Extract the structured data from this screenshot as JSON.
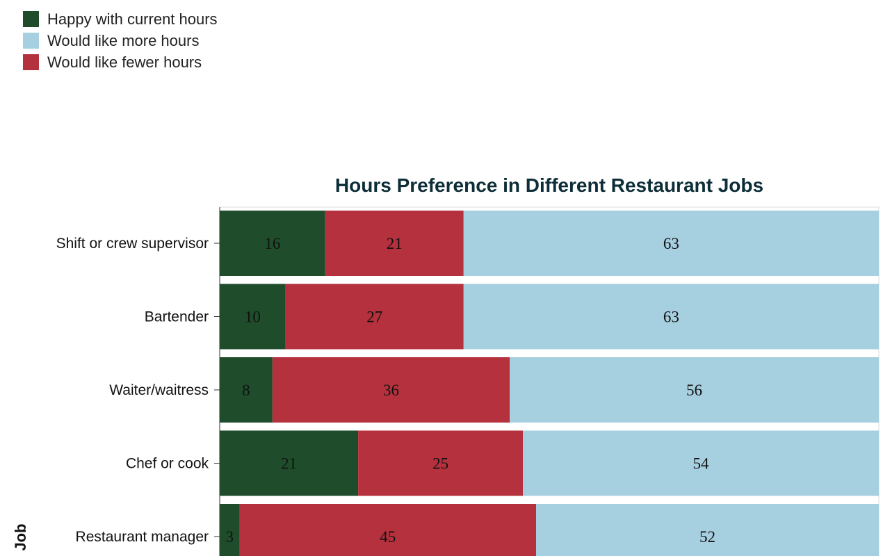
{
  "chart_data": {
    "type": "bar",
    "orientation": "horizontal",
    "stacked": "normalized",
    "title": "Hours Preference in Different Restaurant Jobs",
    "ylabel": "Job",
    "xlabel": "",
    "categories": [
      "Shift or crew supervisor",
      "Bartender",
      "Waiter/waitress",
      "Chef or cook",
      "Restaurant manager"
    ],
    "series": [
      {
        "name": "Happy with current hours",
        "color": "#1f4d2c",
        "values": [
          16,
          10,
          8,
          21,
          3
        ]
      },
      {
        "name": "Would like fewer hours",
        "color": "#b5313d",
        "values": [
          21,
          27,
          36,
          25,
          45
        ]
      },
      {
        "name": "Would like more hours",
        "color": "#a6cfe0",
        "values": [
          63,
          63,
          56,
          54,
          52
        ]
      }
    ],
    "legend": {
      "placement": "top-left",
      "items": [
        {
          "label": "Happy with current hours",
          "color": "#1f4d2c"
        },
        {
          "label": "Would like more hours",
          "color": "#a6cfe0"
        },
        {
          "label": "Would like fewer hours",
          "color": "#b5313d"
        }
      ]
    }
  }
}
